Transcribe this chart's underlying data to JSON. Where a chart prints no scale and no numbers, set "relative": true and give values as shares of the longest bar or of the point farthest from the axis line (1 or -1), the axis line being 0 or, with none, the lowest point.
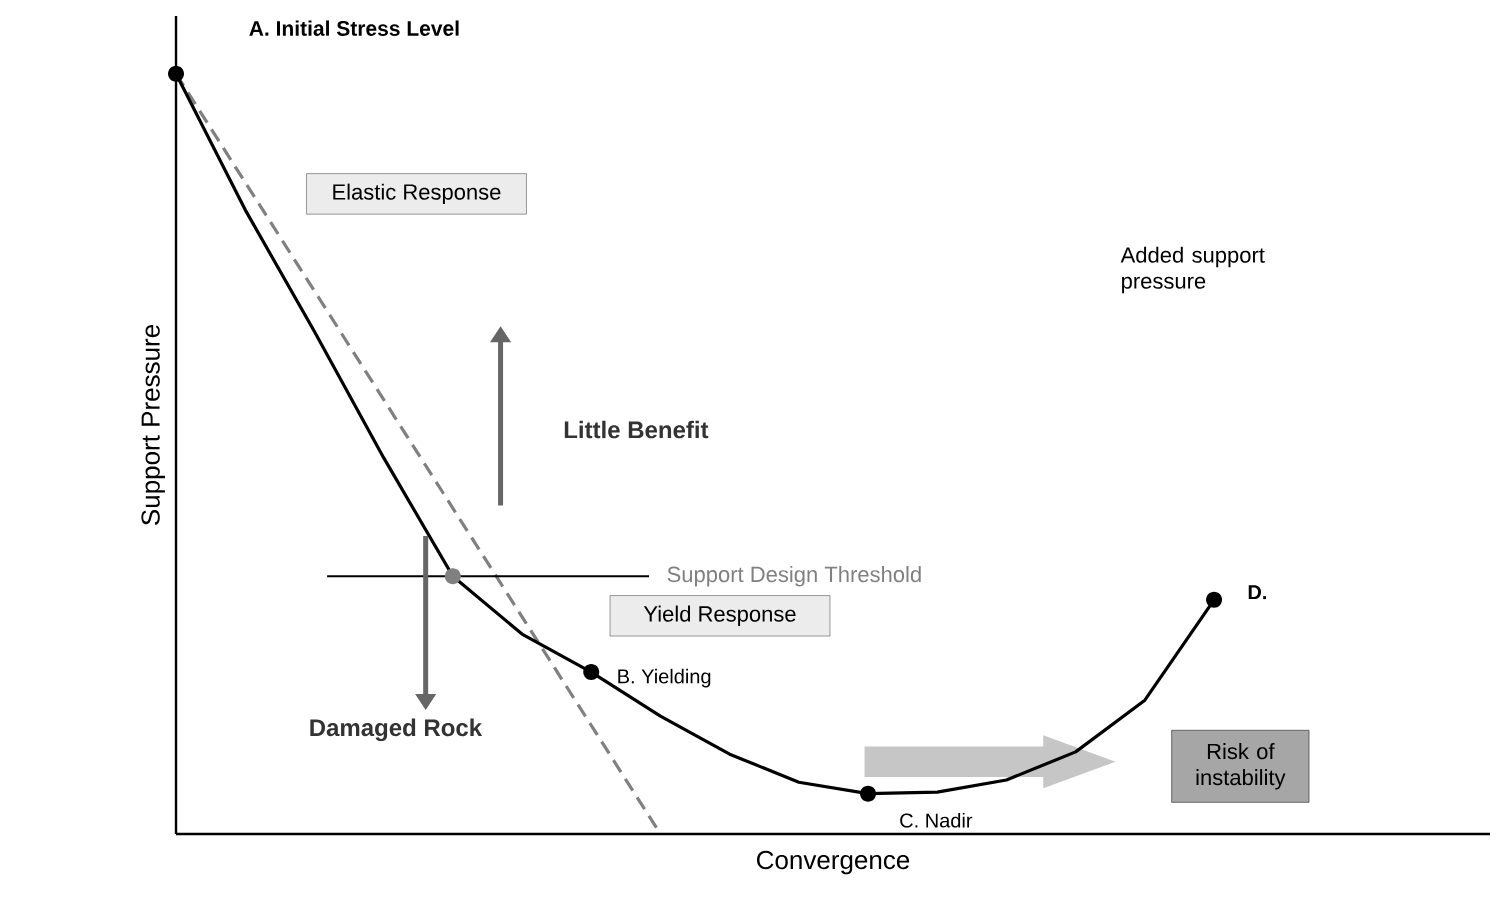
{
  "chart_data": {
    "type": "line",
    "relative": true,
    "xlabel": "Convergence",
    "ylabel": "Support Pressure",
    "categories": [
      null,
      null,
      null,
      null,
      null,
      null,
      null,
      null,
      null,
      null,
      null,
      null,
      null,
      null,
      null,
      null
    ],
    "series": [
      {
        "line_style": "dashed",
        "color": "#808080",
        "values": [
          1,
          null,
          null,
          null,
          null,
          null,
          null,
          0,
          null,
          null,
          null,
          null,
          null,
          null,
          null,
          null
        ]
      },
      {
        "color": "#000000",
        "values": [
          1,
          0.821,
          0.661,
          0.495,
          0.339,
          0.263,
          0.213,
          0.155,
          0.105,
          0.068,
          0.053,
          0.055,
          0.071,
          0.108,
          0.176,
          0.308
        ]
      }
    ],
    "ref_lines": [
      {
        "axis": "y",
        "value": 0.339,
        "label": "Support Design Threshold",
        "color": "#000000"
      }
    ],
    "annotations": [
      "A. Initial Stress Level",
      "Elastic Response",
      "Little Benefit",
      "Damaged Rock",
      "Yield Response",
      "B. Yielding",
      "C. Nadir",
      "D.",
      "Added support pressure",
      "Risk of instability"
    ]
  }
}
